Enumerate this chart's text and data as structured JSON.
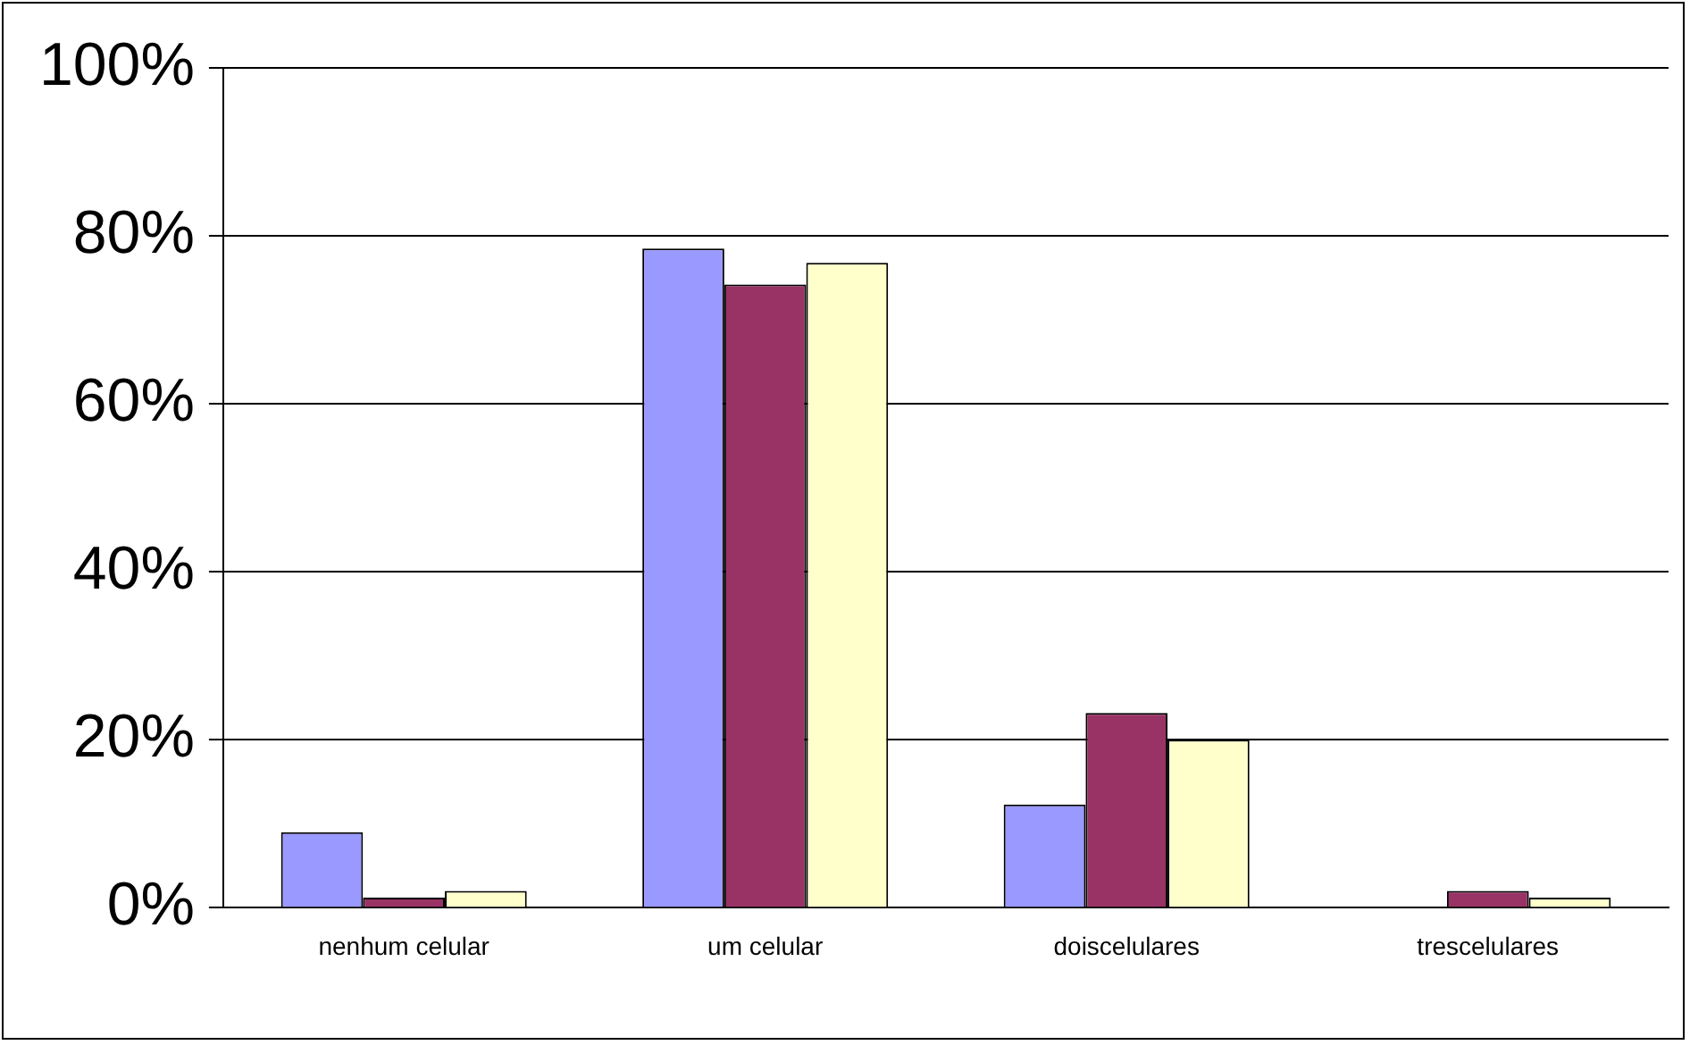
{
  "chart_data": {
    "type": "bar",
    "categories": [
      "nenhum celular",
      "um celular",
      "doiscelulares",
      "trescelulares"
    ],
    "series": [
      {
        "color": "#9999ff",
        "values": [
          9,
          78.5,
          12.3,
          0
        ]
      },
      {
        "color": "#993366",
        "values": [
          1.2,
          74.2,
          23.2,
          2
        ]
      },
      {
        "color": "#ffffcc",
        "values": [
          2,
          76.8,
          20,
          1.2
        ]
      }
    ],
    "ylim": [
      0,
      100
    ],
    "yticks": [
      {
        "value": 0,
        "label": "0%"
      },
      {
        "value": 20,
        "label": "20%"
      },
      {
        "value": 40,
        "label": "40%"
      },
      {
        "value": 60,
        "label": "60%"
      },
      {
        "value": 80,
        "label": "80%"
      },
      {
        "value": 100,
        "label": "100%"
      }
    ],
    "grid": "y",
    "legend": false
  }
}
